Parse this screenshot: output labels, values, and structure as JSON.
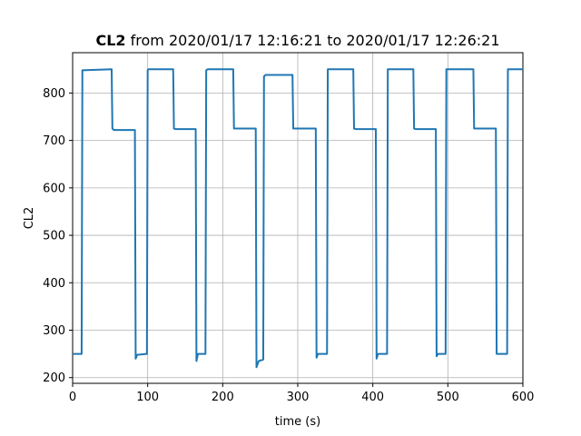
{
  "chart_data": {
    "type": "line",
    "title_bold": "CL2",
    "title_rest": " from 2020/01/17 12:16:21 to 2020/01/17 12:26:21",
    "xlabel": "time (s)",
    "ylabel": "CL2",
    "xlim": [
      0,
      600
    ],
    "ylim": [
      188,
      885
    ],
    "xticks": [
      0,
      100,
      200,
      300,
      400,
      500,
      600
    ],
    "yticks": [
      200,
      300,
      400,
      500,
      600,
      700,
      800
    ],
    "grid": true,
    "color": "#1f77b4",
    "series": [
      {
        "x": [
          0,
          12,
          13,
          52,
          53,
          55,
          83,
          84,
          86,
          99,
          100,
          101,
          134,
          135,
          137,
          164,
          165,
          167,
          177,
          178,
          180,
          214,
          215,
          217,
          244,
          245,
          248,
          254,
          255,
          257,
          293,
          294,
          296,
          324,
          325,
          327,
          339,
          340,
          342,
          374,
          375,
          377,
          404,
          405,
          407,
          419,
          420,
          422,
          454,
          455,
          457,
          484,
          485,
          487,
          497,
          498,
          500,
          534,
          535,
          537,
          564,
          565,
          567,
          579,
          580,
          582,
          600
        ],
        "y": [
          250,
          250,
          848,
          850,
          725,
          722,
          722,
          240,
          248,
          250,
          848,
          850,
          850,
          725,
          724,
          724,
          235,
          250,
          250,
          848,
          850,
          850,
          725,
          725,
          725,
          222,
          235,
          238,
          835,
          838,
          838,
          725,
          725,
          725,
          242,
          250,
          250,
          850,
          850,
          850,
          725,
          724,
          724,
          240,
          250,
          250,
          850,
          850,
          850,
          725,
          724,
          724,
          245,
          250,
          250,
          850,
          850,
          850,
          725,
          725,
          725,
          250,
          250,
          250,
          850,
          850,
          850
        ]
      }
    ]
  }
}
